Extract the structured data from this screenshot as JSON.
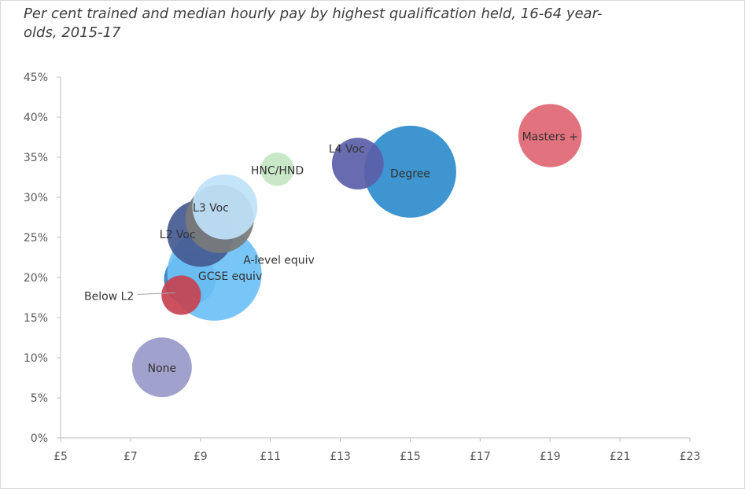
{
  "chart_data": {
    "type": "bubble",
    "title": "Per cent trained and median hourly pay by highest qualification held, 16-64 year-olds, 2015-17",
    "xlabel": "",
    "ylabel": "",
    "xlim": [
      5,
      23
    ],
    "ylim": [
      0,
      45
    ],
    "x_ticks": [
      "£5",
      "£7",
      "£9",
      "£11",
      "£13",
      "£15",
      "£17",
      "£19",
      "£21",
      "£23"
    ],
    "y_ticks": [
      "0%",
      "5%",
      "10%",
      "15%",
      "20%",
      "25%",
      "30%",
      "35%",
      "40%",
      "45%"
    ],
    "grid": false,
    "points": [
      {
        "label": "None",
        "x": 7.9,
        "y": 8.8,
        "size": 1.6,
        "color": "#9999c9"
      },
      {
        "label": "GCSE equiv",
        "x": 9.4,
        "y": 20.5,
        "size": 4.0,
        "color": "#6dc1f6"
      },
      {
        "label": "",
        "x": 8.7,
        "y": 19.8,
        "size": 1.2,
        "color": "#2e7fc0"
      },
      {
        "label": "Below L2",
        "x": 8.45,
        "y": 17.8,
        "size": 0.7,
        "color": "#c6424f"
      },
      {
        "label": "L2 Voc",
        "x": 9.0,
        "y": 25.5,
        "size": 2.0,
        "color": "#445a91"
      },
      {
        "label": "A-level equiv",
        "x": 9.55,
        "y": 27.3,
        "size": 2.1,
        "color": "#7a7a7a"
      },
      {
        "label": "L3 Voc",
        "x": 9.7,
        "y": 28.8,
        "size": 1.9,
        "color": "#bfe2fa"
      },
      {
        "label": "HNC/HND",
        "x": 11.2,
        "y": 33.5,
        "size": 0.5,
        "color": "#c4e6c3"
      },
      {
        "label": "L4 Voc",
        "x": 13.5,
        "y": 34.2,
        "size": 1.2,
        "color": "#5b5ea8"
      },
      {
        "label": "Degree",
        "x": 15.0,
        "y": 33.2,
        "size": 3.8,
        "color": "#2e8ccc"
      },
      {
        "label": "Masters +",
        "x": 19.0,
        "y": 37.7,
        "size": 1.8,
        "color": "#e06672"
      }
    ]
  }
}
